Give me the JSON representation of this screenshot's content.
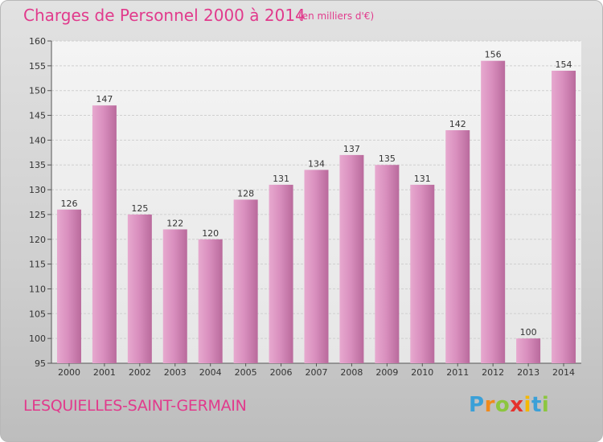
{
  "header": {
    "title": "Charges de Personnel 2000 à 2014",
    "subtitle": "(en milliers d'€)"
  },
  "footer": {
    "commune": "LESQUIELLES-SAINT-GERMAIN",
    "logo_letters": [
      "P",
      "r",
      "o",
      "x",
      "i",
      "t",
      "i"
    ],
    "logo_colors": [
      "#3aa0d8",
      "#f08a1c",
      "#8cc63f",
      "#e5322d",
      "#f5b800",
      "#3aa0d8",
      "#8cc63f"
    ]
  },
  "chart_data": {
    "type": "bar",
    "title": "Charges de Personnel 2000 à 2014",
    "subtitle": "(en milliers d'€)",
    "xlabel": "",
    "ylabel": "",
    "categories": [
      "2000",
      "2001",
      "2002",
      "2003",
      "2004",
      "2005",
      "2006",
      "2007",
      "2008",
      "2009",
      "2010",
      "2011",
      "2012",
      "2013",
      "2014"
    ],
    "values": [
      126,
      147,
      125,
      122,
      120,
      128,
      131,
      134,
      137,
      135,
      131,
      142,
      156,
      100,
      154
    ],
    "ylim": [
      95,
      160
    ],
    "yticks": [
      95,
      100,
      105,
      110,
      115,
      120,
      125,
      130,
      135,
      140,
      145,
      150,
      155,
      160
    ],
    "grid": true,
    "bar_color": "#d98fbe",
    "bar_color_dark": "#b96a9c"
  }
}
